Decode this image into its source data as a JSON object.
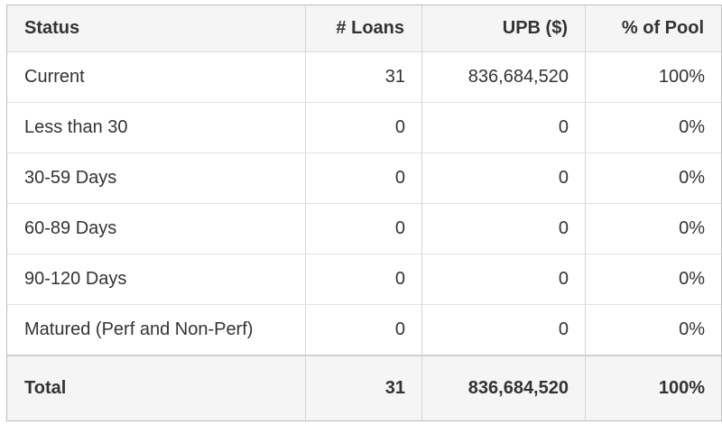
{
  "chart_data": {
    "type": "table",
    "columns": [
      {
        "label": "Status",
        "align": "left"
      },
      {
        "label": "# Loans",
        "align": "right"
      },
      {
        "label": "UPB ($)",
        "align": "right"
      },
      {
        "label": "% of Pool",
        "align": "right"
      }
    ],
    "rows": [
      {
        "status": "Current",
        "loans": "31",
        "upb": "836,684,520",
        "pct": "100%"
      },
      {
        "status": "Less than 30",
        "loans": "0",
        "upb": "0",
        "pct": "0%"
      },
      {
        "status": "30-59 Days",
        "loans": "0",
        "upb": "0",
        "pct": "0%"
      },
      {
        "status": "60-89 Days",
        "loans": "0",
        "upb": "0",
        "pct": "0%"
      },
      {
        "status": "90-120 Days",
        "loans": "0",
        "upb": "0",
        "pct": "0%"
      },
      {
        "status": "Matured (Perf and Non-Perf)",
        "loans": "0",
        "upb": "0",
        "pct": "0%"
      }
    ],
    "total": {
      "status": "Total",
      "loans": "31",
      "upb": "836,684,520",
      "pct": "100%"
    },
    "colors": {
      "header_bg": "#f5f5f5",
      "total_bg": "#f5f5f5",
      "row_bg": "#ffffff",
      "text": "#333333",
      "border_outer": "#bcbcbc",
      "border_vertical": "#d6d6d6",
      "border_horizontal": "#e2e2e2",
      "total_top_border": "#cfcfcf"
    }
  }
}
